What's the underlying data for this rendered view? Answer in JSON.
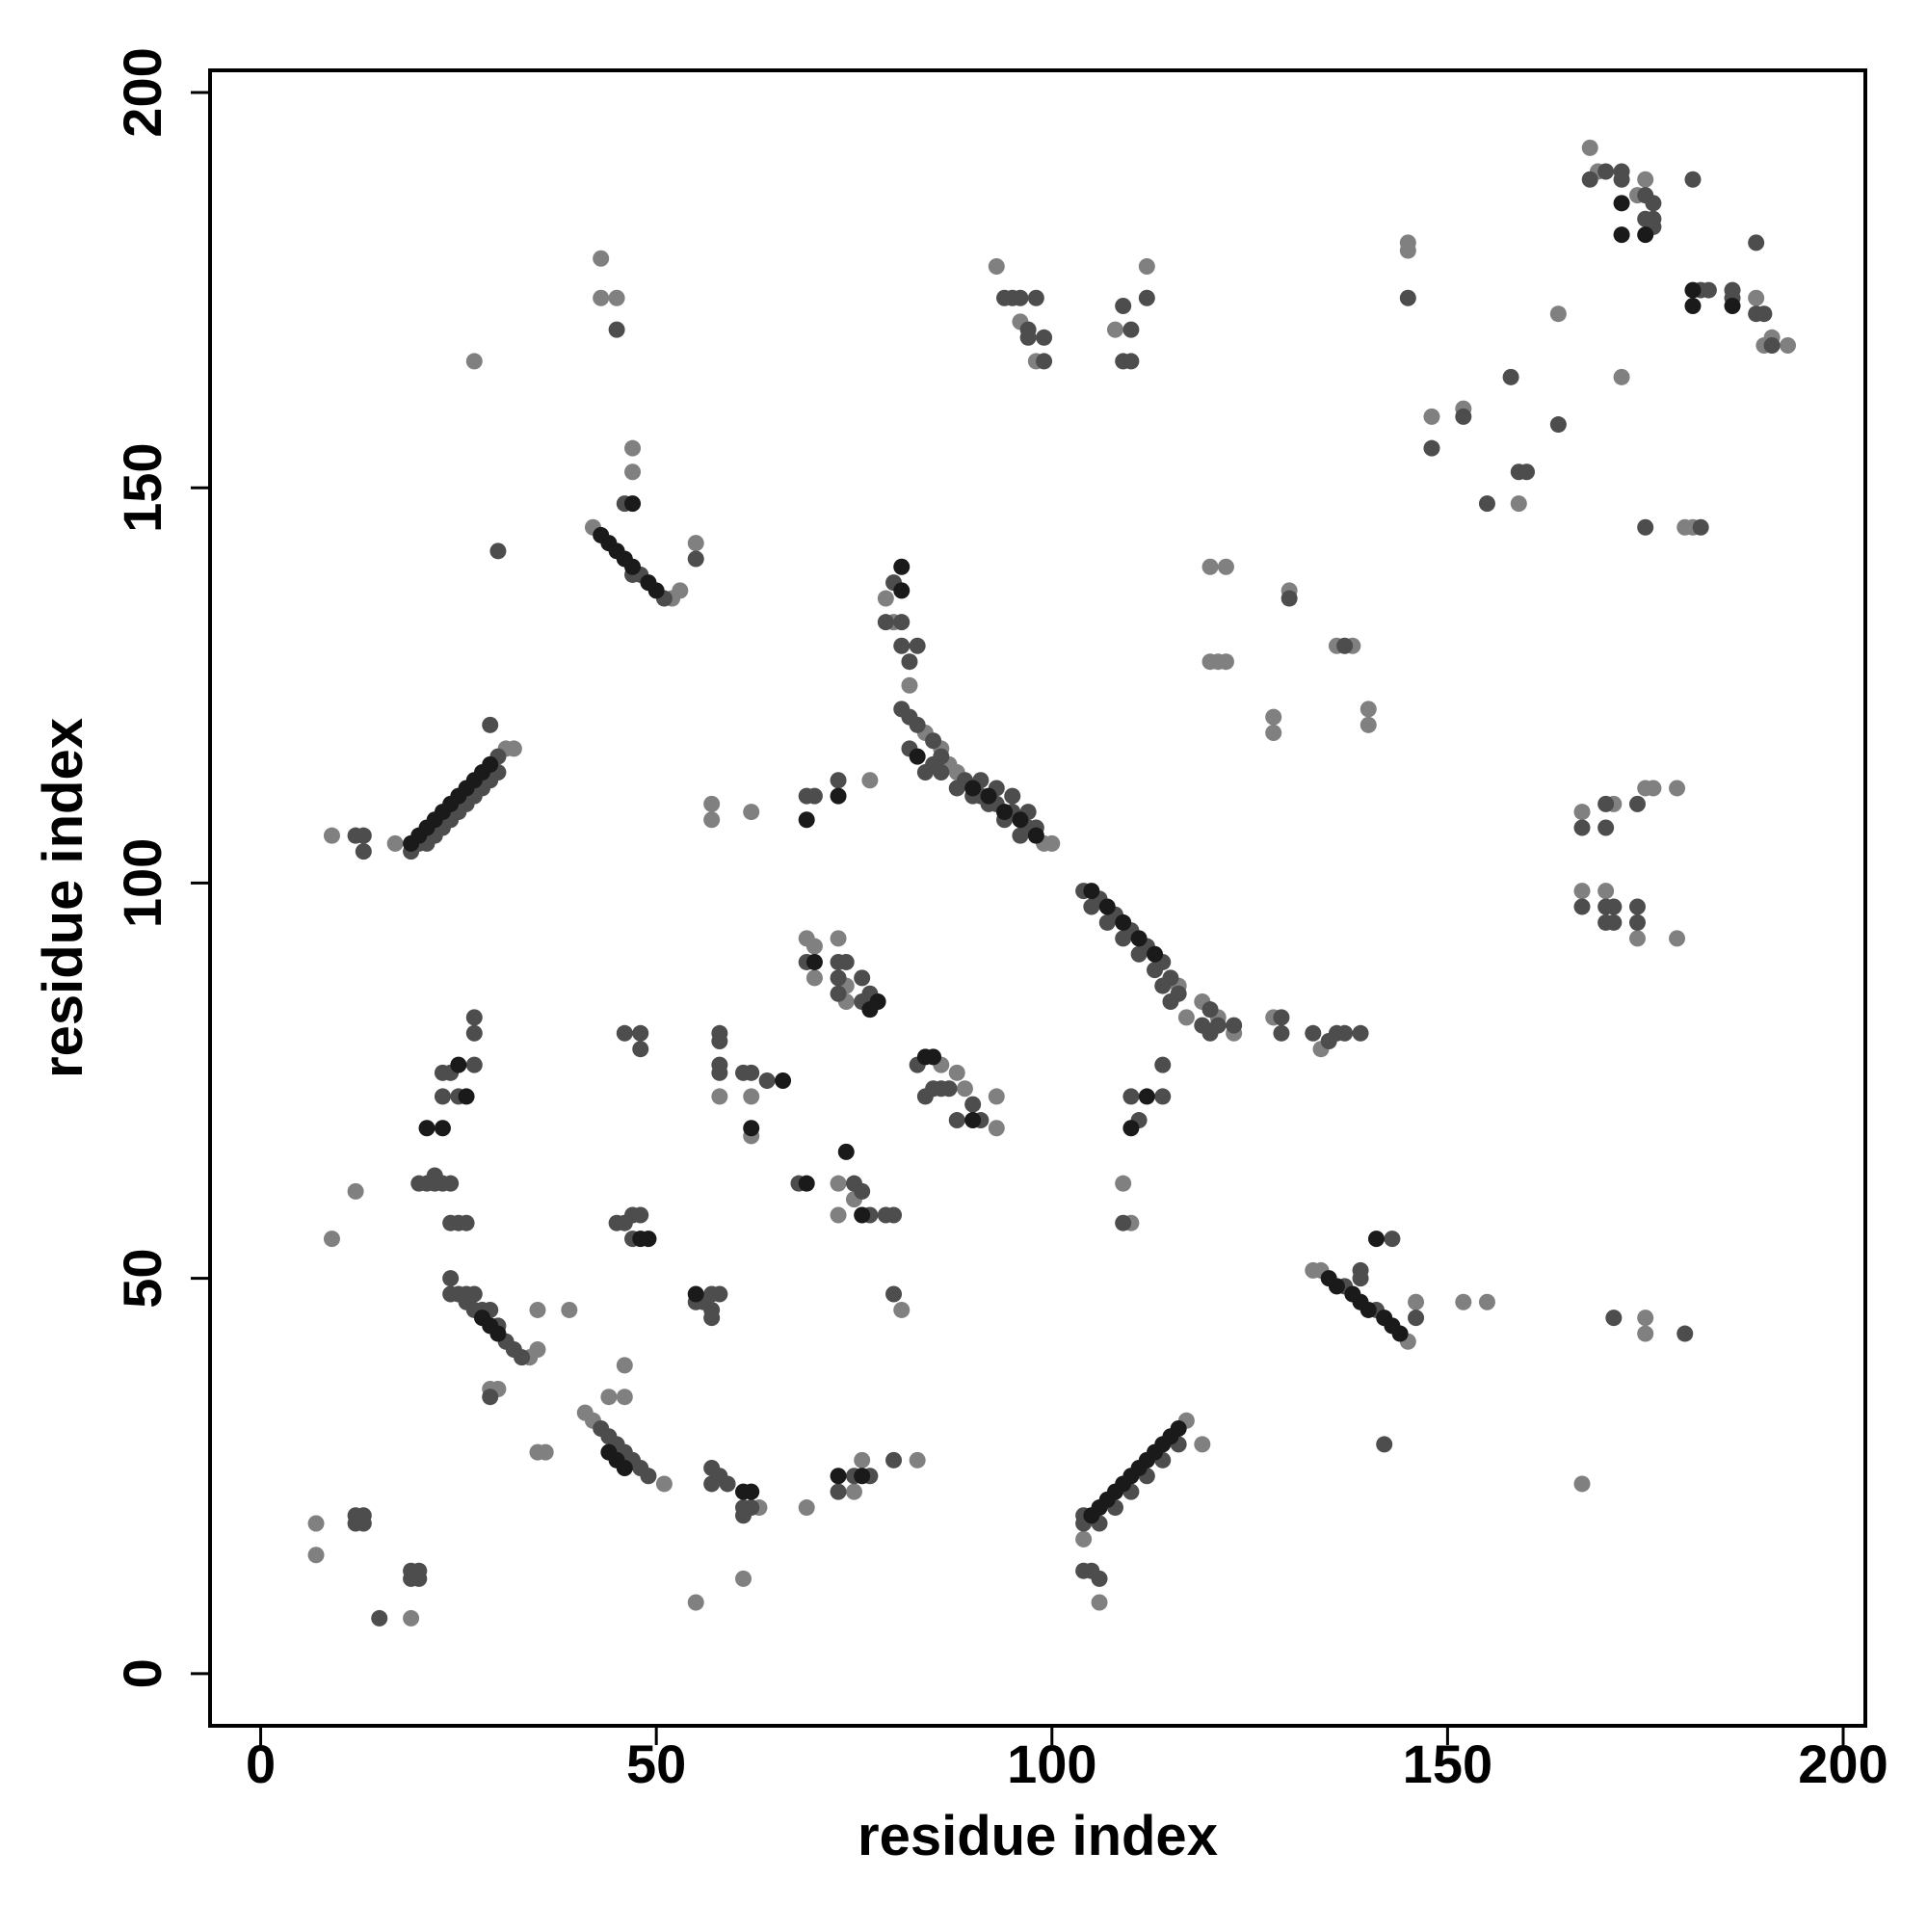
{
  "chart_data": {
    "type": "scatter",
    "xlabel": "residue index",
    "ylabel": "residue index",
    "xlim": [
      -6.4,
      202.8
    ],
    "ylim": [
      -6.6,
      202.8
    ],
    "xticks": [
      0,
      50,
      100,
      150,
      200
    ],
    "yticks": [
      0,
      50,
      100,
      150,
      200
    ],
    "grid": false,
    "series": [
      {
        "color": "#808080",
        "x": [
          7,
          7,
          19,
          9,
          12,
          9,
          17,
          32,
          31,
          29,
          30,
          35,
          36,
          39,
          35,
          35,
          34,
          44,
          46,
          46,
          41,
          42,
          51,
          27,
          43,
          43,
          45,
          47,
          47,
          42,
          55,
          52,
          53,
          57,
          57,
          62,
          77,
          55,
          61,
          63,
          58,
          62,
          62,
          69,
          70,
          73,
          70,
          74,
          74,
          73,
          75,
          73,
          69,
          75,
          76,
          83,
          81,
          88,
          93,
          93,
          86,
          89,
          79,
          80,
          82,
          84,
          86,
          87,
          88,
          99,
          100,
          93,
          96,
          98,
          108,
          112,
          116,
          117,
          109,
          110,
          119,
          121,
          123,
          128,
          134,
          104,
          106,
          117,
          119,
          120,
          122,
          120,
          121,
          122,
          128,
          128,
          130,
          136,
          138,
          140,
          140,
          145,
          146,
          152,
          155,
          145,
          145,
          148,
          152,
          159,
          164,
          168,
          169,
          172,
          174,
          175,
          180,
          181,
          189,
          190,
          191,
          193,
          167,
          171,
          175,
          176,
          179,
          167,
          170,
          174,
          179,
          175,
          175,
          167,
          133,
          134
        ],
        "values": [
          19,
          15,
          7,
          55,
          61,
          106,
          105,
          117,
          117,
          36,
          36,
          28,
          28,
          46,
          41,
          46,
          40,
          35,
          35,
          39,
          33,
          32,
          24,
          166,
          179,
          174,
          174,
          152,
          155,
          145,
          143,
          136,
          137,
          110,
          108,
          109,
          113,
          9,
          12,
          21,
          73,
          73,
          68,
          93,
          92,
          93,
          88,
          87,
          85,
          62,
          60,
          58,
          21,
          23,
          27,
          27,
          46,
          76,
          73,
          69,
          77,
          74,
          136,
          133,
          125,
          119,
          117,
          115,
          114,
          105,
          105,
          178,
          171,
          166,
          170,
          178,
          87,
          83,
          62,
          57,
          85,
          83,
          81,
          83,
          79,
          17,
          9,
          32,
          29,
          140,
          140,
          128,
          128,
          128,
          121,
          119,
          137,
          130,
          130,
          122,
          120,
          42,
          47,
          47,
          47,
          181,
          180,
          159,
          160,
          148,
          172,
          193,
          190,
          164,
          187,
          189,
          145,
          145,
          174,
          168,
          169,
          168,
          109,
          110,
          112,
          112,
          112,
          99,
          99,
          93,
          93,
          45,
          43,
          24,
          51,
          51
        ]
      },
      {
        "color": "#4d4d4d",
        "x": [
          12,
          13,
          12,
          13,
          15,
          19,
          20,
          19,
          20,
          12,
          13,
          13,
          19,
          20,
          21,
          22,
          23,
          24,
          25,
          26,
          27,
          28,
          29,
          30,
          30,
          29,
          22,
          21,
          20,
          23,
          22,
          24,
          24,
          25,
          26,
          23,
          23,
          24,
          25,
          27,
          27,
          27,
          24,
          24,
          25,
          26,
          27,
          26,
          27,
          28,
          29,
          30,
          31,
          32,
          33,
          29,
          43,
          44,
          45,
          46,
          47,
          48,
          49,
          30,
          45,
          46,
          47,
          48,
          51,
          55,
          45,
          46,
          47,
          48,
          47,
          46,
          48,
          48,
          55,
          56,
          57,
          58,
          57,
          57,
          57,
          58,
          57,
          59,
          61,
          61,
          62,
          58,
          58,
          58,
          58,
          61,
          62,
          64,
          69,
          70,
          73,
          69,
          73,
          74,
          73,
          73,
          76,
          76,
          77,
          68,
          75,
          76,
          77,
          79,
          80,
          73,
          75,
          77,
          80,
          80,
          83,
          85,
          86,
          87,
          88,
          90,
          91,
          84,
          80,
          79,
          81,
          81,
          82,
          83,
          81,
          82,
          83,
          85,
          84,
          86,
          89,
          91,
          93,
          95,
          97,
          91,
          93,
          95,
          97,
          98,
          82,
          85,
          86,
          88,
          90,
          92,
          94,
          96,
          94,
          95,
          96,
          97,
          98,
          97,
          99,
          99,
          109,
          110,
          109,
          110,
          112,
          104,
          106,
          108,
          110,
          112,
          114,
          115,
          105,
          107,
          109,
          111,
          113,
          114,
          115,
          116,
          114,
          114,
          111,
          110,
          109,
          120,
          123,
          119,
          120,
          121,
          129,
          129,
          133,
          135,
          136,
          137,
          139,
          104,
          104,
          106,
          108,
          110,
          112,
          114,
          116,
          104,
          105,
          106,
          130,
          137,
          137,
          141,
          143,
          146,
          139,
          139,
          142,
          145,
          148,
          152,
          155,
          158,
          159,
          160,
          164,
          168,
          170,
          172,
          172,
          175,
          175,
          176,
          176,
          176,
          175,
          181,
          182,
          183,
          186,
          186,
          189,
          189,
          190,
          191,
          182,
          167,
          170,
          170,
          174,
          167,
          170,
          171,
          171,
          170,
          174,
          174,
          171,
          180
        ],
        "values": [
          20,
          20,
          19,
          19,
          7,
          13,
          13,
          12,
          12,
          106,
          106,
          104,
          104,
          105,
          105,
          106,
          107,
          108,
          109,
          110,
          111,
          112,
          113,
          114,
          116,
          120,
          62,
          62,
          62,
          62,
          63,
          62,
          57,
          57,
          57,
          73,
          76,
          76,
          73,
          77,
          81,
          83,
          50,
          48,
          48,
          47,
          46,
          48,
          48,
          46,
          46,
          44,
          42,
          41,
          40,
          35,
          31,
          30,
          29,
          28,
          27,
          26,
          25,
          142,
          170,
          148,
          139,
          139,
          136,
          141,
          57,
          57,
          58,
          58,
          55,
          81,
          81,
          79,
          47,
          47,
          48,
          48,
          45,
          46,
          26,
          25,
          24,
          24,
          21,
          20,
          21,
          81,
          80,
          77,
          76,
          76,
          76,
          75,
          111,
          111,
          113,
          90,
          90,
          90,
          88,
          86,
          88,
          85,
          86,
          62,
          62,
          61,
          58,
          58,
          58,
          23,
          25,
          25,
          48,
          27,
          77,
          74,
          74,
          74,
          70,
          72,
          70,
          73,
          138,
          133,
          133,
          130,
          128,
          130,
          122,
          121,
          120,
          118,
          114,
          116,
          113,
          111,
          110,
          109,
          107,
          113,
          112,
          111,
          109,
          107,
          117,
          115,
          114,
          112,
          111,
          110,
          108,
          106,
          174,
          174,
          174,
          170,
          174,
          169,
          169,
          166,
          173,
          170,
          166,
          166,
          174,
          99,
          98,
          96,
          94,
          92,
          90,
          88,
          97,
          95,
          93,
          91,
          89,
          87,
          85,
          86,
          77,
          73,
          70,
          73,
          57,
          84,
          82,
          82,
          81,
          82,
          83,
          81,
          81,
          80,
          81,
          81,
          81,
          19,
          20,
          19,
          21,
          23,
          25,
          27,
          29,
          13,
          13,
          12,
          136,
          130,
          49,
          46,
          55,
          45,
          51,
          50,
          29,
          174,
          155,
          159,
          148,
          164,
          152,
          152,
          158,
          189,
          190,
          190,
          189,
          187,
          184,
          186,
          184,
          183,
          145,
          189,
          175,
          175,
          175,
          174,
          181,
          172,
          172,
          168,
          145,
          107,
          110,
          107,
          110,
          97,
          97,
          97,
          95,
          95,
          97,
          95,
          45,
          43
        ]
      },
      {
        "color": "#1a1a1a",
        "x": [
          19,
          20,
          21,
          22,
          23,
          24,
          25,
          26,
          27,
          28,
          29,
          21,
          23,
          25,
          26,
          28,
          29,
          30,
          44,
          45,
          46,
          43,
          44,
          45,
          46,
          47,
          49,
          50,
          47,
          48,
          49,
          55,
          61,
          62,
          62,
          66,
          69,
          70,
          69,
          73,
          74,
          76,
          77,
          78,
          73,
          76,
          84,
          85,
          90,
          81,
          81,
          83,
          90,
          92,
          94,
          96,
          98,
          105,
          107,
          109,
          111,
          113,
          110,
          112,
          105,
          106,
          107,
          108,
          109,
          110,
          111,
          112,
          113,
          114,
          115,
          116,
          135,
          136,
          138,
          139,
          140,
          142,
          143,
          144,
          141,
          172,
          172,
          175,
          181,
          181,
          186
        ],
        "values": [
          105,
          106,
          107,
          108,
          109,
          110,
          111,
          112,
          113,
          114,
          115,
          69,
          69,
          77,
          73,
          45,
          44,
          43,
          28,
          27,
          26,
          144,
          143,
          142,
          141,
          140,
          138,
          137,
          148,
          55,
          55,
          48,
          23,
          23,
          69,
          75,
          62,
          90,
          108,
          111,
          66,
          58,
          84,
          85,
          25,
          25,
          78,
          78,
          70,
          140,
          137,
          116,
          112,
          111,
          109,
          108,
          106,
          99,
          97,
          95,
          93,
          91,
          69,
          73,
          20,
          21,
          22,
          23,
          24,
          25,
          26,
          27,
          28,
          29,
          30,
          31,
          50,
          49,
          48,
          47,
          46,
          45,
          44,
          43,
          55,
          186,
          182,
          182,
          175,
          173,
          173
        ]
      }
    ]
  }
}
